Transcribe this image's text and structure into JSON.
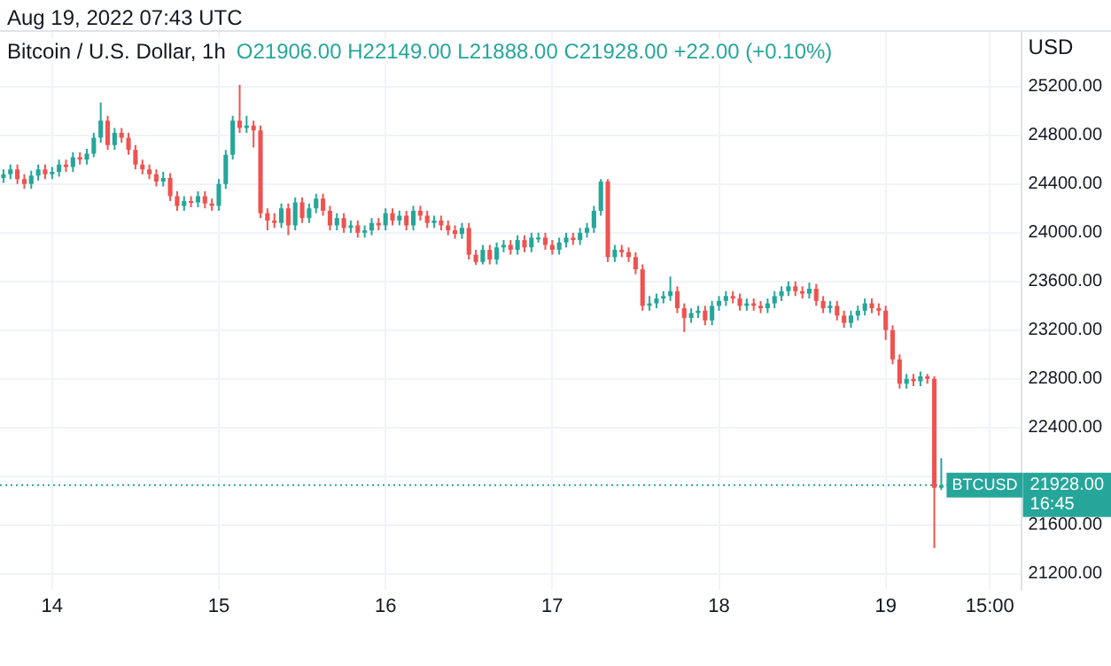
{
  "chart_data": {
    "type": "candlestick",
    "title": "Bitcoin / U.S. Dollar, 1h",
    "subtitle": "O21906.00 H22149.00 L21888.00 C21928.00 +22.00 (+0.10%)",
    "ylabel": "USD",
    "annotations": [
      "Aug 19, 2022 07:43 UTC",
      "21928.00",
      "16:45"
    ],
    "x": [
      "2022-08-13T17:00",
      "2022-08-13T18:00",
      "2022-08-13T19:00",
      "2022-08-13T20:00",
      "2022-08-13T21:00",
      "2022-08-13T22:00",
      "2022-08-13T23:00",
      "2022-08-14T00:00",
      "2022-08-14T01:00",
      "2022-08-14T02:00",
      "2022-08-14T03:00",
      "2022-08-14T04:00",
      "2022-08-14T05:00",
      "2022-08-14T06:00",
      "2022-08-14T07:00",
      "2022-08-14T08:00",
      "2022-08-14T09:00",
      "2022-08-14T10:00",
      "2022-08-14T11:00",
      "2022-08-14T12:00",
      "2022-08-14T13:00",
      "2022-08-14T14:00",
      "2022-08-14T15:00",
      "2022-08-14T16:00",
      "2022-08-14T17:00",
      "2022-08-14T18:00",
      "2022-08-14T19:00",
      "2022-08-14T20:00",
      "2022-08-14T21:00",
      "2022-08-14T22:00",
      "2022-08-14T23:00",
      "2022-08-15T00:00",
      "2022-08-15T01:00",
      "2022-08-15T02:00",
      "2022-08-15T03:00",
      "2022-08-15T04:00",
      "2022-08-15T05:00",
      "2022-08-15T06:00",
      "2022-08-15T07:00",
      "2022-08-15T08:00",
      "2022-08-15T09:00",
      "2022-08-15T10:00",
      "2022-08-15T11:00",
      "2022-08-15T12:00",
      "2022-08-15T13:00",
      "2022-08-15T14:00",
      "2022-08-15T15:00",
      "2022-08-15T16:00",
      "2022-08-15T17:00",
      "2022-08-15T18:00",
      "2022-08-15T19:00",
      "2022-08-15T20:00",
      "2022-08-15T21:00",
      "2022-08-15T22:00",
      "2022-08-15T23:00",
      "2022-08-16T00:00",
      "2022-08-16T01:00",
      "2022-08-16T02:00",
      "2022-08-16T03:00",
      "2022-08-16T04:00",
      "2022-08-16T05:00",
      "2022-08-16T06:00",
      "2022-08-16T07:00",
      "2022-08-16T08:00",
      "2022-08-16T09:00",
      "2022-08-16T10:00",
      "2022-08-16T11:00",
      "2022-08-16T12:00",
      "2022-08-16T13:00",
      "2022-08-16T14:00",
      "2022-08-16T15:00",
      "2022-08-16T16:00",
      "2022-08-16T17:00",
      "2022-08-16T18:00",
      "2022-08-16T19:00",
      "2022-08-16T20:00",
      "2022-08-16T21:00",
      "2022-08-16T22:00",
      "2022-08-16T23:00",
      "2022-08-17T00:00",
      "2022-08-17T01:00",
      "2022-08-17T02:00",
      "2022-08-17T03:00",
      "2022-08-17T04:00",
      "2022-08-17T05:00",
      "2022-08-17T06:00",
      "2022-08-17T07:00",
      "2022-08-17T08:00",
      "2022-08-17T09:00",
      "2022-08-17T10:00",
      "2022-08-17T11:00",
      "2022-08-17T12:00",
      "2022-08-17T13:00",
      "2022-08-17T14:00",
      "2022-08-17T15:00",
      "2022-08-17T16:00",
      "2022-08-17T17:00",
      "2022-08-17T18:00",
      "2022-08-17T19:00",
      "2022-08-17T20:00",
      "2022-08-17T21:00",
      "2022-08-17T22:00",
      "2022-08-17T23:00",
      "2022-08-18T00:00",
      "2022-08-18T01:00",
      "2022-08-18T02:00",
      "2022-08-18T03:00",
      "2022-08-18T04:00",
      "2022-08-18T05:00",
      "2022-08-18T06:00",
      "2022-08-18T07:00",
      "2022-08-18T08:00",
      "2022-08-18T09:00",
      "2022-08-18T10:00",
      "2022-08-18T11:00",
      "2022-08-18T12:00",
      "2022-08-18T13:00",
      "2022-08-18T14:00",
      "2022-08-18T15:00",
      "2022-08-18T16:00",
      "2022-08-18T17:00",
      "2022-08-18T18:00",
      "2022-08-18T19:00",
      "2022-08-18T20:00",
      "2022-08-18T21:00",
      "2022-08-18T22:00",
      "2022-08-18T23:00",
      "2022-08-19T00:00",
      "2022-08-19T01:00",
      "2022-08-19T02:00",
      "2022-08-19T03:00",
      "2022-08-19T04:00",
      "2022-08-19T05:00",
      "2022-08-19T06:00",
      "2022-08-19T07:00",
      "2022-08-19T08:00"
    ],
    "ohlc": [
      [
        24450,
        24520,
        24410,
        24480
      ],
      [
        24480,
        24560,
        24440,
        24520
      ],
      [
        24520,
        24560,
        24400,
        24440
      ],
      [
        24440,
        24480,
        24360,
        24400
      ],
      [
        24400,
        24510,
        24360,
        24470
      ],
      [
        24470,
        24560,
        24430,
        24520
      ],
      [
        24520,
        24560,
        24440,
        24480
      ],
      [
        24480,
        24540,
        24440,
        24500
      ],
      [
        24500,
        24600,
        24460,
        24560
      ],
      [
        24560,
        24600,
        24500,
        24540
      ],
      [
        24540,
        24660,
        24500,
        24620
      ],
      [
        24620,
        24660,
        24560,
        24600
      ],
      [
        24600,
        24690,
        24560,
        24650
      ],
      [
        24650,
        24820,
        24620,
        24780
      ],
      [
        24780,
        25070,
        24740,
        24920
      ],
      [
        24920,
        24960,
        24680,
        24720
      ],
      [
        24720,
        24860,
        24680,
        24820
      ],
      [
        24820,
        24860,
        24740,
        24780
      ],
      [
        24780,
        24820,
        24640,
        24680
      ],
      [
        24680,
        24720,
        24520,
        24560
      ],
      [
        24560,
        24600,
        24480,
        24520
      ],
      [
        24520,
        24560,
        24440,
        24480
      ],
      [
        24480,
        24520,
        24380,
        24420
      ],
      [
        24420,
        24500,
        24380,
        24450
      ],
      [
        24450,
        24490,
        24260,
        24300
      ],
      [
        24300,
        24340,
        24180,
        24220
      ],
      [
        24220,
        24300,
        24180,
        24260
      ],
      [
        24260,
        24300,
        24210,
        24250
      ],
      [
        24250,
        24340,
        24210,
        24300
      ],
      [
        24300,
        24340,
        24200,
        24240
      ],
      [
        24240,
        24280,
        24180,
        24220
      ],
      [
        24220,
        24440,
        24180,
        24400
      ],
      [
        24400,
        24680,
        24360,
        24640
      ],
      [
        24640,
        24960,
        24600,
        24920
      ],
      [
        24920,
        25215,
        24820,
        24860
      ],
      [
        24860,
        24960,
        24820,
        24880
      ],
      [
        24880,
        24920,
        24700,
        24840
      ],
      [
        24840,
        24880,
        24120,
        24160
      ],
      [
        24160,
        24200,
        24020,
        24100
      ],
      [
        24100,
        24160,
        24040,
        24080
      ],
      [
        24080,
        24240,
        24040,
        24200
      ],
      [
        24200,
        24240,
        23980,
        24060
      ],
      [
        24060,
        24290,
        24020,
        24250
      ],
      [
        24250,
        24290,
        24080,
        24120
      ],
      [
        24120,
        24240,
        24080,
        24200
      ],
      [
        24200,
        24320,
        24160,
        24280
      ],
      [
        24280,
        24320,
        24140,
        24180
      ],
      [
        24180,
        24220,
        24020,
        24060
      ],
      [
        24060,
        24160,
        24020,
        24120
      ],
      [
        24120,
        24160,
        24000,
        24040
      ],
      [
        24040,
        24100,
        24000,
        24060
      ],
      [
        24060,
        24100,
        23960,
        24000
      ],
      [
        24000,
        24060,
        23960,
        24020
      ],
      [
        24020,
        24120,
        23980,
        24080
      ],
      [
        24080,
        24120,
        24020,
        24060
      ],
      [
        24060,
        24200,
        24020,
        24160
      ],
      [
        24160,
        24200,
        24060,
        24100
      ],
      [
        24100,
        24180,
        24060,
        24140
      ],
      [
        24140,
        24180,
        24020,
        24060
      ],
      [
        24060,
        24220,
        24020,
        24180
      ],
      [
        24180,
        24220,
        24100,
        24140
      ],
      [
        24140,
        24180,
        24040,
        24080
      ],
      [
        24080,
        24140,
        24040,
        24100
      ],
      [
        24100,
        24140,
        24020,
        24060
      ],
      [
        24060,
        24100,
        23980,
        24020
      ],
      [
        24020,
        24060,
        23950,
        23990
      ],
      [
        23990,
        24080,
        23950,
        24040
      ],
      [
        24040,
        24080,
        23780,
        23820
      ],
      [
        23820,
        23860,
        23735,
        23760
      ],
      [
        23760,
        23900,
        23740,
        23860
      ],
      [
        23860,
        23900,
        23740,
        23780
      ],
      [
        23780,
        23920,
        23740,
        23880
      ],
      [
        23880,
        23940,
        23840,
        23900
      ],
      [
        23900,
        23940,
        23820,
        23860
      ],
      [
        23860,
        23980,
        23820,
        23940
      ],
      [
        23940,
        23980,
        23840,
        23880
      ],
      [
        23880,
        24000,
        23840,
        23960
      ],
      [
        23960,
        24000,
        23920,
        23960
      ],
      [
        23960,
        24000,
        23860,
        23900
      ],
      [
        23900,
        23940,
        23820,
        23860
      ],
      [
        23860,
        23960,
        23820,
        23920
      ],
      [
        23920,
        24000,
        23880,
        23960
      ],
      [
        23960,
        24000,
        23900,
        23940
      ],
      [
        23940,
        24040,
        23900,
        24000
      ],
      [
        24000,
        24080,
        23960,
        24040
      ],
      [
        24040,
        24220,
        24000,
        24180
      ],
      [
        24180,
        24440,
        24140,
        24420
      ],
      [
        24420,
        24440,
        23760,
        23800
      ],
      [
        23800,
        23900,
        23760,
        23860
      ],
      [
        23860,
        23900,
        23800,
        23840
      ],
      [
        23840,
        23880,
        23760,
        23800
      ],
      [
        23800,
        23840,
        23660,
        23700
      ],
      [
        23700,
        23740,
        23360,
        23400
      ],
      [
        23400,
        23480,
        23360,
        23420
      ],
      [
        23420,
        23500,
        23380,
        23460
      ],
      [
        23460,
        23520,
        23420,
        23480
      ],
      [
        23480,
        23640,
        23440,
        23520
      ],
      [
        23520,
        23560,
        23340,
        23380
      ],
      [
        23380,
        23420,
        23185,
        23300
      ],
      [
        23300,
        23380,
        23260,
        23340
      ],
      [
        23340,
        23400,
        23300,
        23360
      ],
      [
        23360,
        23400,
        23240,
        23280
      ],
      [
        23280,
        23440,
        23240,
        23400
      ],
      [
        23400,
        23480,
        23360,
        23440
      ],
      [
        23440,
        23520,
        23400,
        23480
      ],
      [
        23480,
        23520,
        23420,
        23460
      ],
      [
        23460,
        23500,
        23360,
        23400
      ],
      [
        23400,
        23460,
        23360,
        23420
      ],
      [
        23420,
        23460,
        23360,
        23400
      ],
      [
        23400,
        23440,
        23340,
        23380
      ],
      [
        23380,
        23460,
        23340,
        23420
      ],
      [
        23420,
        23520,
        23380,
        23480
      ],
      [
        23480,
        23560,
        23440,
        23520
      ],
      [
        23520,
        23600,
        23480,
        23560
      ],
      [
        23560,
        23600,
        23480,
        23520
      ],
      [
        23520,
        23560,
        23460,
        23500
      ],
      [
        23500,
        23590,
        23460,
        23540
      ],
      [
        23540,
        23580,
        23400,
        23440
      ],
      [
        23440,
        23480,
        23340,
        23380
      ],
      [
        23380,
        23440,
        23340,
        23400
      ],
      [
        23400,
        23440,
        23280,
        23320
      ],
      [
        23320,
        23360,
        23220,
        23260
      ],
      [
        23260,
        23360,
        23220,
        23320
      ],
      [
        23320,
        23400,
        23280,
        23360
      ],
      [
        23360,
        23460,
        23320,
        23420
      ],
      [
        23420,
        23460,
        23340,
        23380
      ],
      [
        23380,
        23420,
        23320,
        23360
      ],
      [
        23360,
        23400,
        23120,
        23200
      ],
      [
        23200,
        23240,
        22920,
        22960
      ],
      [
        22960,
        23000,
        22720,
        22760
      ],
      [
        22760,
        22840,
        22720,
        22800
      ],
      [
        22800,
        22840,
        22740,
        22780
      ],
      [
        22780,
        22860,
        22740,
        22820
      ],
      [
        22820,
        22840,
        22760,
        22800
      ],
      [
        22800,
        22820,
        21410,
        21906
      ],
      [
        21906,
        22149,
        21888,
        21928
      ]
    ],
    "colors": [
      "#26a69a",
      "#26a69a",
      "#ef5350",
      "#ef5350",
      "#26a69a",
      "#26a69a",
      "#ef5350",
      "#26a69a",
      "#26a69a",
      "#ef5350",
      "#26a69a",
      "#ef5350",
      "#26a69a",
      "#26a69a",
      "#26a69a",
      "#ef5350",
      "#26a69a",
      "#ef5350",
      "#ef5350",
      "#ef5350",
      "#ef5350",
      "#ef5350",
      "#ef5350",
      "#26a69a",
      "#ef5350",
      "#ef5350",
      "#26a69a",
      "#ef5350",
      "#26a69a",
      "#ef5350",
      "#ef5350",
      "#26a69a",
      "#26a69a",
      "#26a69a",
      "#ef5350",
      "#26a69a",
      "#ef5350",
      "#ef5350",
      "#ef5350",
      "#ef5350",
      "#26a69a",
      "#ef5350",
      "#26a69a",
      "#ef5350",
      "#26a69a",
      "#26a69a",
      "#ef5350",
      "#ef5350",
      "#26a69a",
      "#ef5350",
      "#26a69a",
      "#ef5350",
      "#26a69a",
      "#26a69a",
      "#ef5350",
      "#26a69a",
      "#ef5350",
      "#26a69a",
      "#ef5350",
      "#26a69a",
      "#ef5350",
      "#ef5350",
      "#26a69a",
      "#ef5350",
      "#ef5350",
      "#ef5350",
      "#26a69a",
      "#ef5350",
      "#ef5350",
      "#26a69a",
      "#ef5350",
      "#26a69a",
      "#26a69a",
      "#ef5350",
      "#26a69a",
      "#ef5350",
      "#26a69a",
      "#26a69a",
      "#ef5350",
      "#ef5350",
      "#26a69a",
      "#26a69a",
      "#ef5350",
      "#26a69a",
      "#26a69a",
      "#26a69a",
      "#26a69a",
      "#ef5350",
      "#26a69a",
      "#ef5350",
      "#ef5350",
      "#ef5350",
      "#ef5350",
      "#26a69a",
      "#26a69a",
      "#26a69a",
      "#26a69a",
      "#ef5350",
      "#ef5350",
      "#26a69a",
      "#26a69a",
      "#ef5350",
      "#26a69a",
      "#26a69a",
      "#26a69a",
      "#ef5350",
      "#ef5350",
      "#26a69a",
      "#ef5350",
      "#ef5350",
      "#26a69a",
      "#26a69a",
      "#26a69a",
      "#26a69a",
      "#ef5350",
      "#ef5350",
      "#26a69a",
      "#ef5350",
      "#ef5350",
      "#26a69a",
      "#ef5350",
      "#ef5350",
      "#26a69a",
      "#26a69a",
      "#26a69a",
      "#ef5350",
      "#ef5350",
      "#ef5350",
      "#ef5350",
      "#ef5350",
      "#26a69a",
      "#ef5350",
      "#26a69a",
      "#ef5350",
      "#ef5350",
      "#26a69a"
    ],
    "xlim": [
      "2022-08-13T16:30",
      "2022-08-19T19:30"
    ],
    "xticks": [
      {
        "value": "2022-08-14",
        "label": "14"
      },
      {
        "value": "2022-08-15",
        "label": "15"
      },
      {
        "value": "2022-08-16",
        "label": "16"
      },
      {
        "value": "2022-08-17",
        "label": "17"
      },
      {
        "value": "2022-08-18",
        "label": "18"
      },
      {
        "value": "2022-08-19",
        "label": "19"
      },
      {
        "value": "2022-08-19T15:00",
        "label": "15:00"
      }
    ],
    "ylim": [
      21070,
      25650
    ],
    "yticks": [
      {
        "value": 21200,
        "label": "21200.00"
      },
      {
        "value": 21600,
        "label": "21600.00"
      },
      {
        "value": 22000,
        "label": null
      },
      {
        "value": 22400,
        "label": "22400.00"
      },
      {
        "value": 22800,
        "label": "22800.00"
      },
      {
        "value": 23200,
        "label": "23200.00"
      },
      {
        "value": 23600,
        "label": "23600.00"
      },
      {
        "value": 24000,
        "label": "24000.00"
      },
      {
        "value": 24400,
        "label": "24400.00"
      },
      {
        "value": 24800,
        "label": "24800.00"
      },
      {
        "value": 25200,
        "label": "25200.00"
      }
    ],
    "ref_lines": [
      {
        "axis": "y",
        "value": 21928,
        "label": "BTCUSD",
        "color": "#26a69a",
        "line_style": "dotted"
      }
    ],
    "grid": true,
    "legend": false
  }
}
